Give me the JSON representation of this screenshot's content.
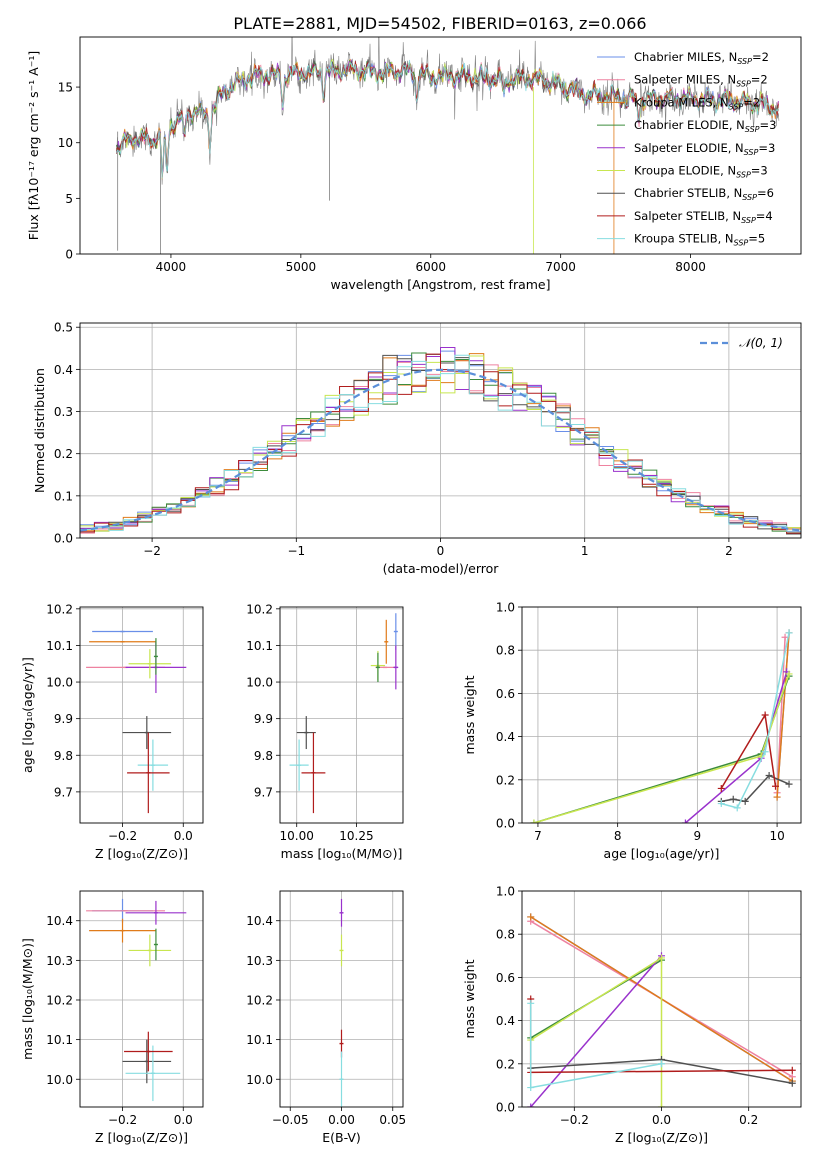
{
  "figure": {
    "title": "PLATE=2881, MJD=54502, FIBERID=0163, z=0.066"
  },
  "chart_data": [
    {
      "id": "spectrum",
      "type": "line",
      "title": "PLATE=2881, MJD=54502, FIBERID=0163, z=0.066",
      "xlabel": "wavelength [Angstrom, rest frame]",
      "ylabel": "Flux [fλ10⁻¹⁷ erg cm⁻² s⁻¹ A⁻¹]",
      "xlim": [
        3300,
        8850
      ],
      "ylim": [
        0,
        19.5
      ],
      "xticks": [
        4000,
        5000,
        6000,
        7000,
        8000
      ],
      "yticks": [
        0,
        5,
        10,
        15
      ],
      "grid": false,
      "legend_position": "top-right",
      "legend": [
        {
          "label": "Chabrier MILES, N",
          "sub": "SSP",
          "suffix": "=2",
          "color": "#6a8fe8"
        },
        {
          "label": "Salpeter MILES, N",
          "sub": "SSP",
          "suffix": "=2",
          "color": "#ee82a0"
        },
        {
          "label": "Kroupa MILES, N",
          "sub": "SSP",
          "suffix": "=2",
          "color": "#e07b1a"
        },
        {
          "label": "Chabrier ELODIE, N",
          "sub": "SSP",
          "suffix": "=3",
          "color": "#3c8c3c"
        },
        {
          "label": "Salpeter ELODIE, N",
          "sub": "SSP",
          "suffix": "=3",
          "color": "#9932cc"
        },
        {
          "label": "Kroupa ELODIE, N",
          "sub": "SSP",
          "suffix": "=3",
          "color": "#c8e650"
        },
        {
          "label": "Chabrier STELIB, N",
          "sub": "SSP",
          "suffix": "=6",
          "color": "#505050"
        },
        {
          "label": "Salpeter STELIB, N",
          "sub": "SSP",
          "suffix": "=4",
          "color": "#b01c1c"
        },
        {
          "label": "Kroupa STELIB, N",
          "sub": "SSP",
          "suffix": "=5",
          "color": "#87dde0"
        }
      ],
      "data_color": "#808080",
      "continuum": {
        "x": [
          3580,
          3700,
          3850,
          3950,
          4050,
          4150,
          4300,
          4400,
          4500,
          4600,
          4700,
          4800,
          5000,
          5200,
          5400,
          5600,
          5800,
          6000,
          6200,
          6500,
          6800,
          7000,
          7200,
          7400,
          7600,
          7800,
          8000,
          8200,
          8500,
          8680
        ],
        "y": [
          9.5,
          10.5,
          10.2,
          10.8,
          12.0,
          12.8,
          12.5,
          14.5,
          15.3,
          15.8,
          16.2,
          16.0,
          16.3,
          16.4,
          16.6,
          16.3,
          16.5,
          16.0,
          16.0,
          15.7,
          15.8,
          15.2,
          14.3,
          14.2,
          13.8,
          14.0,
          14.0,
          13.8,
          13.6,
          13.0
        ]
      }
    },
    {
      "id": "residuals",
      "type": "histogram",
      "xlabel": "(data-model)/error",
      "ylabel": "Normed distribution",
      "xlim": [
        -2.5,
        2.5
      ],
      "ylim": [
        0,
        0.51
      ],
      "xticks": [
        -2,
        -1,
        0,
        1,
        2
      ],
      "yticks": [
        0.0,
        0.1,
        0.2,
        0.3,
        0.4,
        0.5
      ],
      "grid": true,
      "legend_position": "top-right",
      "legend": [
        {
          "label": "𝒩(0, 1)",
          "color": "#5b8fd9",
          "style": "dashed"
        }
      ],
      "bin_width": 0.1,
      "bin_start": -2.5
    },
    {
      "id": "age_vs_Z",
      "type": "scatter",
      "xlabel": "Z [log₁₀(Z/Z⊙)]",
      "ylabel": "age  [log₁₀(age/yr)]",
      "xlim": [
        -0.34,
        0.065
      ],
      "ylim": [
        9.615,
        10.205
      ],
      "xticks": [
        -0.2,
        0.0
      ],
      "xticklabels": [
        "−0.2",
        "0.0"
      ],
      "yticks": [
        9.7,
        9.8,
        9.9,
        10.0,
        10.1,
        10.2
      ],
      "grid": true,
      "points": [
        {
          "series": "Chabrier MILES",
          "x": -0.2,
          "xerr": 0.1,
          "y": 10.138,
          "yerr": 0.0
        },
        {
          "series": "Kroupa MILES",
          "x": -0.2,
          "xerr": 0.11,
          "y": 10.11,
          "yerr": 0.0
        },
        {
          "series": "Salpeter MILES",
          "x": -0.19,
          "xerr": 0.13,
          "y": 10.04,
          "yerr": 0.0
        },
        {
          "series": "Salpeter ELODIE",
          "x": -0.09,
          "xerr": 0.1,
          "y": 10.04,
          "yerr": 0.07
        },
        {
          "series": "Kroupa ELODIE",
          "x": -0.11,
          "xerr": 0.07,
          "y": 10.05,
          "yerr": 0.04
        },
        {
          "series": "Chabrier ELODIE",
          "x": -0.09,
          "xerr": 0.0,
          "y": 10.07,
          "yerr": 0.05
        },
        {
          "series": "Chabrier STELIB",
          "x": -0.12,
          "xerr": 0.08,
          "y": 9.862,
          "yerr": 0.045
        },
        {
          "series": "Kroupa STELIB",
          "x": -0.1,
          "xerr": 0.05,
          "y": 9.773,
          "yerr": 0.07
        },
        {
          "series": "Salpeter STELIB",
          "x": -0.115,
          "xerr": 0.07,
          "y": 9.752,
          "yerr": 0.11
        }
      ]
    },
    {
      "id": "age_vs_mass",
      "type": "scatter",
      "xlabel": "mass [log₁₀(M/M⊙)]",
      "ylabel": "",
      "xlim": [
        9.93,
        10.445
      ],
      "ylim": [
        9.615,
        10.205
      ],
      "xticks": [
        10.0,
        10.25
      ],
      "xticklabels": [
        "10.00",
        "10.25"
      ],
      "yticks": [
        9.7,
        9.8,
        9.9,
        10.0,
        10.1,
        10.2
      ],
      "grid": true,
      "points": [
        {
          "series": "Chabrier MILES",
          "x": 10.415,
          "xerr": 0.0,
          "y": 10.138,
          "yerr": 0.05
        },
        {
          "series": "Kroupa MILES",
          "x": 10.375,
          "xerr": 0.0,
          "y": 10.11,
          "yerr": 0.06
        },
        {
          "series": "Salpeter MILES",
          "x": 10.37,
          "xerr": 0.04,
          "y": 10.04,
          "yerr": 0.0
        },
        {
          "series": "Salpeter ELODIE",
          "x": 10.415,
          "xerr": 0.01,
          "y": 10.04,
          "yerr": 0.06
        },
        {
          "series": "Kroupa ELODIE",
          "x": 10.34,
          "xerr": 0.03,
          "y": 10.045,
          "yerr": 0.04
        },
        {
          "series": "Chabrier ELODIE",
          "x": 10.34,
          "xerr": 0.0,
          "y": 10.04,
          "yerr": 0.04
        },
        {
          "series": "Chabrier STELIB",
          "x": 10.04,
          "xerr": 0.04,
          "y": 9.862,
          "yerr": 0.045
        },
        {
          "series": "Kroupa STELIB",
          "x": 10.01,
          "xerr": 0.04,
          "y": 9.773,
          "yerr": 0.07
        },
        {
          "series": "Salpeter STELIB",
          "x": 10.07,
          "xerr": 0.05,
          "y": 9.752,
          "yerr": 0.11
        }
      ]
    },
    {
      "id": "weight_vs_age",
      "type": "line",
      "xlabel": "age  [log₁₀(age/yr)]",
      "ylabel": "mass weight",
      "xlim": [
        6.8,
        10.3
      ],
      "ylim": [
        0,
        1.0
      ],
      "xticks": [
        7,
        8,
        9,
        10
      ],
      "yticks": [
        0.0,
        0.2,
        0.4,
        0.6,
        0.8,
        1.0
      ],
      "grid": true,
      "series": [
        {
          "name": "Chabrier MILES",
          "x": [
            10.0,
            10.15
          ],
          "y": [
            0.12,
            0.88
          ]
        },
        {
          "name": "Salpeter MILES",
          "x": [
            10.0,
            10.1
          ],
          "y": [
            0.14,
            0.86
          ]
        },
        {
          "name": "Kroupa MILES",
          "x": [
            10.0,
            10.15
          ],
          "y": [
            0.12,
            0.88
          ]
        },
        {
          "name": "Chabrier ELODIE",
          "x": [
            6.95,
            9.8,
            10.15
          ],
          "y": [
            0.0,
            0.32,
            0.68
          ]
        },
        {
          "name": "Salpeter ELODIE",
          "x": [
            8.85,
            9.8,
            10.12
          ],
          "y": [
            0.0,
            0.3,
            0.7
          ]
        },
        {
          "name": "Kroupa ELODIE",
          "x": [
            6.95,
            9.8,
            10.15
          ],
          "y": [
            0.0,
            0.31,
            0.69
          ]
        },
        {
          "name": "Chabrier STELIB",
          "x": [
            9.3,
            9.45,
            9.6,
            9.9,
            10.15
          ],
          "y": [
            0.1,
            0.11,
            0.1,
            0.22,
            0.18
          ]
        },
        {
          "name": "Salpeter STELIB",
          "x": [
            9.3,
            9.85,
            9.98
          ],
          "y": [
            0.16,
            0.5,
            0.17
          ]
        },
        {
          "name": "Kroupa STELIB",
          "x": [
            9.3,
            9.5,
            9.85,
            10.15
          ],
          "y": [
            0.09,
            0.07,
            0.33,
            0.88
          ]
        }
      ]
    },
    {
      "id": "mass_vs_Z",
      "type": "scatter",
      "xlabel": "Z [log₁₀(Z/Z⊙)]",
      "ylabel": "mass [log₁₀(M/M⊙)]",
      "xlim": [
        -0.34,
        0.065
      ],
      "ylim": [
        9.93,
        10.475
      ],
      "xticks": [
        -0.2,
        0.0
      ],
      "xticklabels": [
        "−0.2",
        "0.0"
      ],
      "yticks": [
        10.0,
        10.1,
        10.2,
        10.3,
        10.4
      ],
      "grid": true,
      "points": [
        {
          "series": "Chabrier MILES",
          "x": -0.2,
          "xerr": 0.1,
          "y": 10.425,
          "yerr": 0.03
        },
        {
          "series": "Kroupa MILES",
          "x": -0.2,
          "xerr": 0.11,
          "y": 10.375,
          "yerr": 0.03
        },
        {
          "series": "Salpeter MILES",
          "x": -0.19,
          "xerr": 0.13,
          "y": 10.425,
          "yerr": 0.0
        },
        {
          "series": "Salpeter ELODIE",
          "x": -0.09,
          "xerr": 0.1,
          "y": 10.42,
          "yerr": 0.03
        },
        {
          "series": "Kroupa ELODIE",
          "x": -0.11,
          "xerr": 0.07,
          "y": 10.325,
          "yerr": 0.04
        },
        {
          "series": "Chabrier ELODIE",
          "x": -0.09,
          "xerr": 0.0,
          "y": 10.34,
          "yerr": 0.04
        },
        {
          "series": "Chabrier STELIB",
          "x": -0.12,
          "xerr": 0.08,
          "y": 10.045,
          "yerr": 0.055
        },
        {
          "series": "Kroupa STELIB",
          "x": -0.1,
          "xerr": 0.09,
          "y": 10.015,
          "yerr": 0.07
        },
        {
          "series": "Salpeter STELIB",
          "x": -0.115,
          "xerr": 0.08,
          "y": 10.07,
          "yerr": 0.05
        }
      ]
    },
    {
      "id": "mass_vs_ebv",
      "type": "scatter",
      "xlabel": "E(B-V)",
      "ylabel": "",
      "xlim": [
        -0.06,
        0.06
      ],
      "ylim": [
        9.93,
        10.475
      ],
      "xticks": [
        -0.05,
        0.0,
        0.05
      ],
      "xticklabels": [
        "−0.05",
        "0.00",
        "0.05"
      ],
      "yticks": [
        10.0,
        10.1,
        10.2,
        10.3,
        10.4
      ],
      "grid": true,
      "points": [
        {
          "series": "Salpeter ELODIE",
          "x": 0.0,
          "xerr": 0.0,
          "y": 10.42,
          "yerr": 0.035
        },
        {
          "series": "Kroupa ELODIE",
          "x": 0.0,
          "xerr": 0.0,
          "y": 10.325,
          "yerr": 0.04
        },
        {
          "series": "Salpeter STELIB",
          "x": 0.0,
          "xerr": 0.0,
          "y": 10.09,
          "yerr": 0.035
        },
        {
          "series": "Kroupa STELIB",
          "x": 0.0,
          "xerr": 0.0,
          "y": 10.0,
          "yerr": 0.07
        }
      ]
    },
    {
      "id": "weight_vs_Z",
      "type": "line",
      "xlabel": "Z [log₁₀(Z/Z⊙)]",
      "ylabel": "mass weight",
      "xlim": [
        -0.32,
        0.32
      ],
      "ylim": [
        0,
        1.0
      ],
      "xticks": [
        -0.2,
        0.0,
        0.2
      ],
      "xticklabels": [
        "−0.2",
        "0.0",
        "0.2"
      ],
      "yticks": [
        0.0,
        0.2,
        0.4,
        0.6,
        0.8,
        1.0
      ],
      "grid": true,
      "series": [
        {
          "name": "Chabrier MILES",
          "x": [
            -0.3,
            0.3
          ],
          "y": [
            0.88,
            0.12
          ]
        },
        {
          "name": "Salpeter MILES",
          "x": [
            -0.3,
            0.3
          ],
          "y": [
            0.86,
            0.14
          ]
        },
        {
          "name": "Kroupa MILES",
          "x": [
            -0.3,
            0.3
          ],
          "y": [
            0.88,
            0.12
          ]
        },
        {
          "name": "Chabrier ELODIE",
          "x": [
            -0.3,
            0.0
          ],
          "y": [
            0.32,
            0.68
          ]
        },
        {
          "name": "Salpeter ELODIE",
          "x": [
            -0.3,
            0.0
          ],
          "y": [
            0.0,
            0.7
          ]
        },
        {
          "name": "Kroupa ELODIE",
          "x": [
            -0.3,
            0.0,
            0.0
          ],
          "y": [
            0.31,
            0.69,
            0.0
          ]
        },
        {
          "name": "Chabrier STELIB",
          "x": [
            -0.3,
            0.0,
            0.3
          ],
          "y": [
            0.18,
            0.22,
            0.11
          ]
        },
        {
          "name": "Salpeter STELIB",
          "x": [
            -0.3,
            -0.3,
            0.3
          ],
          "y": [
            0.5,
            0.16,
            0.17
          ]
        },
        {
          "name": "Kroupa STELIB",
          "x": [
            -0.3,
            -0.3,
            0.0,
            0.0
          ],
          "y": [
            0.48,
            0.09,
            0.2,
            0.2
          ]
        }
      ]
    }
  ]
}
